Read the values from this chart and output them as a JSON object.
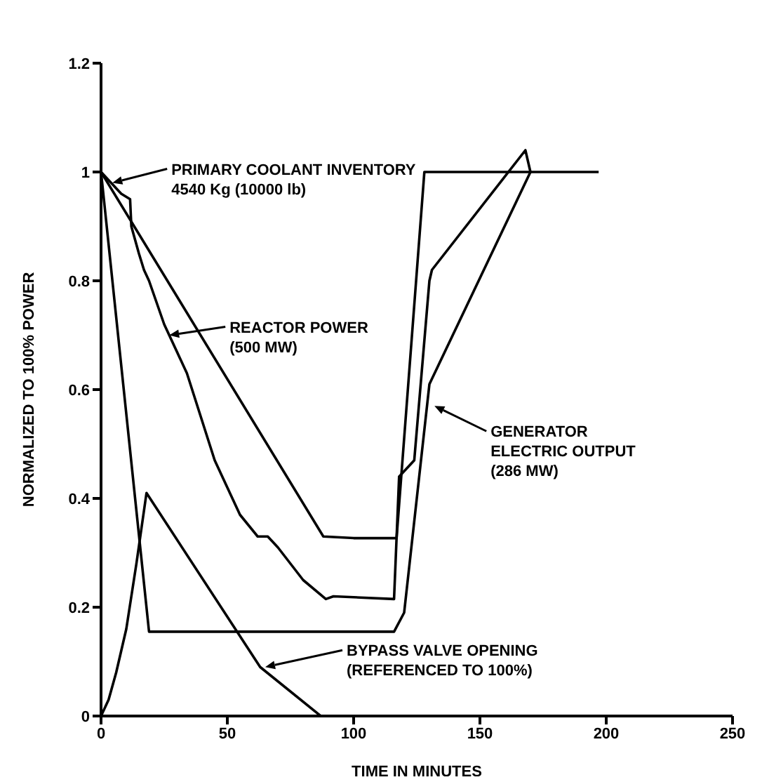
{
  "chart_data": {
    "type": "line",
    "xlabel": "TIME IN MINUTES",
    "ylabel": "NORMALIZED TO 100% POWER",
    "xlim": [
      0,
      250
    ],
    "xticks": [
      0,
      50,
      100,
      150,
      200,
      250
    ],
    "ylim": [
      0,
      1.2
    ],
    "yticks": [
      0,
      {
        "value": 0.2,
        "label": "0.2"
      },
      {
        "value": 0.4,
        "label": "0.4"
      },
      {
        "value": 0.6,
        "label": "0.6"
      },
      {
        "value": 0.8,
        "label": "0.8"
      },
      1,
      {
        "value": 1.2,
        "label": "1.2"
      }
    ],
    "grid": false,
    "legend": false,
    "marker": "none",
    "line_style": "solid",
    "series": [
      {
        "color": "#000000",
        "x": [
          0,
          88,
          100,
          117,
          128,
          197
        ],
        "values": [
          1,
          0.33,
          0.327,
          0.327,
          1,
          1
        ]
      },
      {
        "color": "#000000",
        "x": [
          0,
          4,
          8,
          11.5,
          12,
          15,
          17,
          19,
          25,
          34,
          45,
          55,
          62,
          66,
          70,
          80,
          89,
          92,
          116,
          118,
          122,
          124,
          130,
          131,
          168,
          170
        ],
        "values": [
          1,
          0.98,
          0.96,
          0.95,
          0.9,
          0.85,
          0.82,
          0.8,
          0.72,
          0.63,
          0.47,
          0.37,
          0.33,
          0.33,
          0.31,
          0.25,
          0.215,
          0.22,
          0.215,
          0.44,
          0.46,
          0.47,
          0.8,
          0.82,
          1.04,
          1
        ]
      },
      {
        "color": "#000000",
        "x": [
          0,
          19,
          116,
          120,
          130,
          170
        ],
        "values": [
          1,
          0.155,
          0.155,
          0.19,
          0.61,
          1
        ]
      },
      {
        "color": "#000000",
        "x": [
          0,
          3,
          6,
          10,
          14,
          18,
          63,
          87
        ],
        "values": [
          0,
          0.03,
          0.08,
          0.16,
          0.28,
          0.41,
          0.09,
          0
        ]
      }
    ],
    "annotations": [
      {
        "text": "PRIMARY COOLANT INVENTORY\n4540 Kg (10000 lb)",
        "x": 4.5,
        "y": 0.98
      },
      {
        "text": "REACTOR POWER\n(500 MW)",
        "x": 27,
        "y": 0.7
      },
      {
        "text": "GENERATOR\nELECTRIC OUTPUT\n(286 MW)",
        "x": 132,
        "y": 0.57
      },
      {
        "text": "BYPASS VALVE OPENING\n(REFERENCED TO 100%)",
        "x": 65,
        "y": 0.09
      }
    ]
  }
}
